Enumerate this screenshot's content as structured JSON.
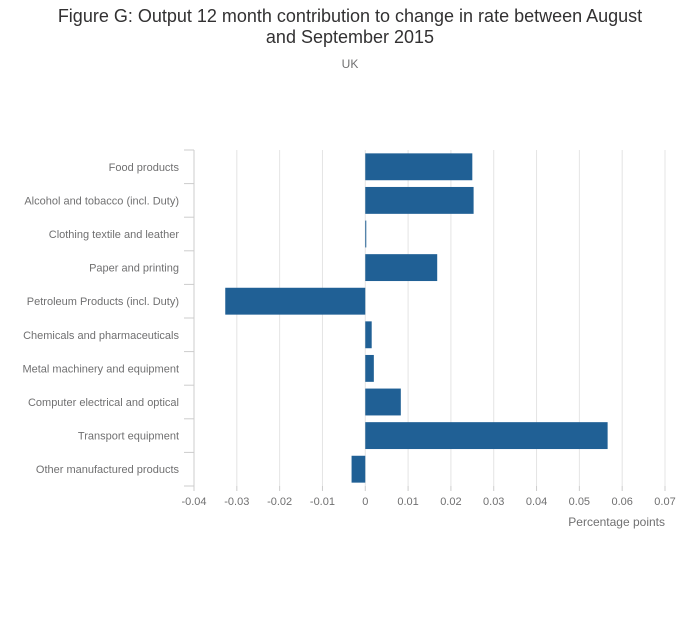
{
  "chart_data": {
    "type": "bar",
    "orientation": "horizontal",
    "title_lines": [
      "Figure G: Output 12 month contribution to change in rate between August",
      "and September 2015"
    ],
    "subtitle": "UK",
    "xlabel": "Percentage points",
    "ylabel": "",
    "xlim": [
      -0.04,
      0.07
    ],
    "xticks": [
      "-0.04",
      "-0.03",
      "-0.02",
      "-0.01",
      "0",
      "0.01",
      "0.02",
      "0.03",
      "0.04",
      "0.05",
      "0.06",
      "0.07"
    ],
    "grid": true,
    "bar_color": "#206095",
    "categories": [
      "Food products",
      "Alcohol and tobacco (incl. Duty)",
      "Clothing textile and leather",
      "Paper and printing",
      "Petroleum Products (incl. Duty)",
      "Chemicals and pharmaceuticals",
      "Metal machinery and equipment",
      "Computer electrical and optical",
      "Transport equipment",
      "Other manufactured products"
    ],
    "values": [
      0.025,
      0.0253,
      0.0002,
      0.0168,
      -0.0327,
      0.0015,
      0.002,
      0.0083,
      0.0566,
      -0.0032
    ]
  }
}
